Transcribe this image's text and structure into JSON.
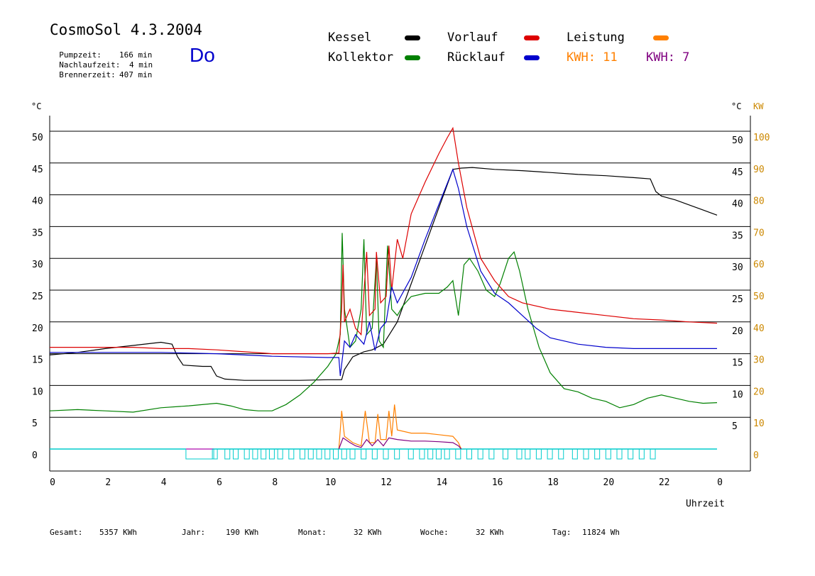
{
  "header": {
    "title": "CosmoSol 4.3.2004",
    "weekday": "Do",
    "stats": [
      {
        "label": "Pumpzeit:",
        "value": "166 min"
      },
      {
        "label": "Nachlaufzeit:",
        "value": "4 min"
      },
      {
        "label": "Brennerzeit:",
        "value": "407 min"
      }
    ]
  },
  "legend": {
    "items": [
      {
        "label": "Kessel",
        "color": "#000000"
      },
      {
        "label": "Kollektor",
        "color": "#008000"
      },
      {
        "label": "Vorlauf",
        "color": "#dd0000"
      },
      {
        "label": "Rücklauf",
        "color": "#0000cc"
      },
      {
        "label": "Leistung",
        "color": "#ff8000"
      }
    ],
    "kwh": [
      {
        "label": "KWH: 11",
        "color": "#ff8000"
      },
      {
        "label": "KWH: 7",
        "color": "#800080"
      }
    ]
  },
  "footer": [
    {
      "label": "Gesamt:",
      "value": "5357 KWh"
    },
    {
      "label": "Jahr:",
      "value": "190 KWh"
    },
    {
      "label": "Monat:",
      "value": "32 KWh"
    },
    {
      "label": "Woche:",
      "value": "32 KWh"
    },
    {
      "label": "Tag:",
      "value": "11824 Wh"
    }
  ],
  "chart_data": {
    "type": "line",
    "xlabel": "Uhrzeit",
    "ylabel_left": "°C",
    "ylabel_right_temp": "°C",
    "ylabel_right_power": "KW",
    "xlim": [
      0,
      24
    ],
    "ylim": [
      0,
      50
    ],
    "y2lim": [
      0,
      100
    ],
    "x_ticks": [
      "0",
      "2",
      "4",
      "6",
      "8",
      "10",
      "12",
      "14",
      "16",
      "18",
      "20",
      "22",
      "0"
    ],
    "y_ticks": [
      "0",
      "5",
      "10",
      "15",
      "20",
      "25",
      "30",
      "35",
      "40",
      "45",
      "50"
    ],
    "y_ticks_right": [
      "5",
      "10",
      "15",
      "20",
      "25",
      "30",
      "35",
      "40",
      "45",
      "50"
    ],
    "y2_ticks": [
      "0",
      "10",
      "20",
      "30",
      "40",
      "50",
      "60",
      "70",
      "80",
      "90",
      "100"
    ],
    "grid": true,
    "series": [
      {
        "name": "Kessel",
        "color": "#000000",
        "points": [
          [
            0,
            14.8
          ],
          [
            1,
            15.2
          ],
          [
            2,
            15.8
          ],
          [
            3,
            16.3
          ],
          [
            4,
            16.8
          ],
          [
            4.4,
            16.5
          ],
          [
            4.6,
            14.5
          ],
          [
            4.8,
            13.2
          ],
          [
            5.5,
            13.0
          ],
          [
            5.8,
            13.0
          ],
          [
            6.0,
            11.5
          ],
          [
            6.3,
            11.0
          ],
          [
            7,
            10.8
          ],
          [
            8,
            10.8
          ],
          [
            9,
            10.8
          ],
          [
            10,
            10.9
          ],
          [
            10.5,
            10.9
          ],
          [
            10.6,
            12.5
          ],
          [
            10.9,
            14.5
          ],
          [
            11.3,
            15.3
          ],
          [
            11.6,
            15.6
          ],
          [
            12,
            16.5
          ],
          [
            12.5,
            20
          ],
          [
            13,
            26
          ],
          [
            13.5,
            32
          ],
          [
            14,
            38
          ],
          [
            14.5,
            44
          ],
          [
            14.8,
            44.2
          ],
          [
            15.2,
            44.3
          ],
          [
            16,
            44.0
          ],
          [
            17,
            43.8
          ],
          [
            18,
            43.5
          ],
          [
            19,
            43.2
          ],
          [
            20,
            43.0
          ],
          [
            21,
            42.7
          ],
          [
            21.6,
            42.5
          ],
          [
            21.8,
            40.5
          ],
          [
            22,
            39.8
          ],
          [
            22.5,
            39.2
          ],
          [
            23,
            38.4
          ],
          [
            23.5,
            37.6
          ],
          [
            24,
            36.8
          ]
        ]
      },
      {
        "name": "Kollektor",
        "color": "#008000",
        "points": [
          [
            0,
            6.0
          ],
          [
            1,
            6.2
          ],
          [
            2,
            6.0
          ],
          [
            3,
            5.8
          ],
          [
            4,
            6.5
          ],
          [
            5,
            6.8
          ],
          [
            6,
            7.2
          ],
          [
            6.5,
            6.8
          ],
          [
            7,
            6.2
          ],
          [
            7.5,
            6.0
          ],
          [
            8,
            6.0
          ],
          [
            8.5,
            7.0
          ],
          [
            9,
            8.5
          ],
          [
            9.5,
            10.5
          ],
          [
            10,
            13.0
          ],
          [
            10.3,
            15.0
          ],
          [
            10.45,
            18.0
          ],
          [
            10.52,
            34.0
          ],
          [
            10.6,
            22.0
          ],
          [
            10.8,
            16.0
          ],
          [
            11.0,
            17.0
          ],
          [
            11.2,
            22.0
          ],
          [
            11.3,
            33.0
          ],
          [
            11.4,
            18.0
          ],
          [
            11.6,
            19.0
          ],
          [
            11.75,
            30.0
          ],
          [
            11.85,
            17.0
          ],
          [
            12.0,
            16.0
          ],
          [
            12.15,
            32.0
          ],
          [
            12.3,
            22.0
          ],
          [
            12.5,
            21.0
          ],
          [
            12.7,
            22.5
          ],
          [
            13,
            24.0
          ],
          [
            13.5,
            24.5
          ],
          [
            14,
            24.5
          ],
          [
            14.3,
            25.5
          ],
          [
            14.5,
            26.5
          ],
          [
            14.7,
            21.0
          ],
          [
            14.9,
            29.0
          ],
          [
            15.1,
            30.0
          ],
          [
            15.4,
            28.0
          ],
          [
            15.7,
            25.0
          ],
          [
            16,
            24.0
          ],
          [
            16.2,
            26.0
          ],
          [
            16.5,
            30.0
          ],
          [
            16.7,
            31.0
          ],
          [
            16.9,
            28.0
          ],
          [
            17.2,
            22.0
          ],
          [
            17.6,
            16.0
          ],
          [
            18,
            12.0
          ],
          [
            18.5,
            9.5
          ],
          [
            19,
            9.0
          ],
          [
            19.5,
            8.0
          ],
          [
            20,
            7.5
          ],
          [
            20.5,
            6.5
          ],
          [
            21,
            7.0
          ],
          [
            21.5,
            8.0
          ],
          [
            22,
            8.5
          ],
          [
            22.5,
            8.0
          ],
          [
            23,
            7.5
          ],
          [
            23.5,
            7.2
          ],
          [
            24,
            7.3
          ]
        ]
      },
      {
        "name": "Vorlauf",
        "color": "#dd0000",
        "points": [
          [
            0,
            16.0
          ],
          [
            1,
            16.0
          ],
          [
            2,
            16.0
          ],
          [
            3,
            16.0
          ],
          [
            4,
            15.8
          ],
          [
            5,
            15.8
          ],
          [
            6,
            15.6
          ],
          [
            7,
            15.3
          ],
          [
            8,
            15.0
          ],
          [
            9,
            15.0
          ],
          [
            10,
            15.0
          ],
          [
            10.4,
            15.1
          ],
          [
            10.5,
            22.0
          ],
          [
            10.55,
            29.0
          ],
          [
            10.6,
            20.0
          ],
          [
            10.8,
            22.0
          ],
          [
            11.0,
            19.0
          ],
          [
            11.2,
            18.0
          ],
          [
            11.4,
            31.0
          ],
          [
            11.5,
            21.0
          ],
          [
            11.7,
            22.0
          ],
          [
            11.75,
            31.0
          ],
          [
            11.9,
            23.0
          ],
          [
            12.1,
            24.0
          ],
          [
            12.2,
            32.0
          ],
          [
            12.3,
            25.0
          ],
          [
            12.5,
            33.0
          ],
          [
            12.7,
            30.0
          ],
          [
            13,
            37.0
          ],
          [
            13.5,
            42.0
          ],
          [
            14,
            46.5
          ],
          [
            14.3,
            49.0
          ],
          [
            14.5,
            50.5
          ],
          [
            14.7,
            45.0
          ],
          [
            15,
            38.0
          ],
          [
            15.5,
            30.0
          ],
          [
            16,
            26.5
          ],
          [
            16.5,
            24.0
          ],
          [
            17,
            23.0
          ],
          [
            18,
            22.0
          ],
          [
            19,
            21.5
          ],
          [
            20,
            21.0
          ],
          [
            21,
            20.5
          ],
          [
            22,
            20.3
          ],
          [
            23,
            20.0
          ],
          [
            24,
            19.8
          ]
        ]
      },
      {
        "name": "Rücklauf",
        "color": "#0000cc",
        "points": [
          [
            0,
            15.2
          ],
          [
            2,
            15.2
          ],
          [
            4,
            15.2
          ],
          [
            6,
            15.0
          ],
          [
            8,
            14.6
          ],
          [
            10,
            14.4
          ],
          [
            10.4,
            14.4
          ],
          [
            10.45,
            11.5
          ],
          [
            10.6,
            17.0
          ],
          [
            10.8,
            16.0
          ],
          [
            11.0,
            18.0
          ],
          [
            11.3,
            16.5
          ],
          [
            11.5,
            20.0
          ],
          [
            11.7,
            15.5
          ],
          [
            11.9,
            19.0
          ],
          [
            12.1,
            20.0
          ],
          [
            12.3,
            25.5
          ],
          [
            12.5,
            23.0
          ],
          [
            13,
            27.0
          ],
          [
            13.5,
            33.0
          ],
          [
            14,
            38.5
          ],
          [
            14.5,
            44.0
          ],
          [
            14.7,
            41.0
          ],
          [
            15,
            35.0
          ],
          [
            15.5,
            28.0
          ],
          [
            16,
            24.5
          ],
          [
            16.5,
            23.0
          ],
          [
            17,
            21.0
          ],
          [
            17.5,
            19.0
          ],
          [
            18,
            17.5
          ],
          [
            19,
            16.5
          ],
          [
            20,
            16.0
          ],
          [
            21,
            15.8
          ],
          [
            22,
            15.8
          ],
          [
            24,
            15.8
          ]
        ]
      }
    ],
    "power_series": [
      {
        "name": "Leistung",
        "color": "#ff8000",
        "points": [
          [
            10.4,
            0
          ],
          [
            10.5,
            12.0
          ],
          [
            10.6,
            4.0
          ],
          [
            10.9,
            2.0
          ],
          [
            11.2,
            1.0
          ],
          [
            11.35,
            12.0
          ],
          [
            11.5,
            2.0
          ],
          [
            11.7,
            2.0
          ],
          [
            11.8,
            11.0
          ],
          [
            11.9,
            3.0
          ],
          [
            12.1,
            3.0
          ],
          [
            12.2,
            12.0
          ],
          [
            12.3,
            4.0
          ],
          [
            12.4,
            14.0
          ],
          [
            12.5,
            6.0
          ],
          [
            13,
            5.0
          ],
          [
            13.5,
            5.0
          ],
          [
            14,
            4.5
          ],
          [
            14.5,
            4.0
          ],
          [
            14.7,
            2.0
          ],
          [
            14.8,
            0
          ]
        ]
      },
      {
        "name": "KWH 7",
        "color": "#800080",
        "points": [
          [
            10.4,
            0
          ],
          [
            10.55,
            3.5
          ],
          [
            10.8,
            2.0
          ],
          [
            11.0,
            1.0
          ],
          [
            11.2,
            0.5
          ],
          [
            11.4,
            3.0
          ],
          [
            11.6,
            1.0
          ],
          [
            11.8,
            3.0
          ],
          [
            12.0,
            1.0
          ],
          [
            12.2,
            3.5
          ],
          [
            12.5,
            3.0
          ],
          [
            13,
            2.5
          ],
          [
            13.5,
            2.5
          ],
          [
            14,
            2.3
          ],
          [
            14.5,
            2.0
          ],
          [
            14.7,
            1.0
          ],
          [
            14.8,
            0
          ]
        ]
      }
    ],
    "status_bar": {
      "color": "#00cccc",
      "line_x": [
        0,
        24
      ],
      "wide_segments": [
        [
          4.9,
          5.9
        ]
      ],
      "pink_top": [
        [
          4.9,
          5.9
        ]
      ],
      "small_box_starts": [
        5.85,
        6.3,
        6.6,
        7.0,
        7.3,
        7.6,
        7.9,
        8.2,
        8.6,
        9.0,
        9.3,
        9.6,
        9.9,
        10.2,
        10.5,
        10.8,
        11.2,
        11.6,
        12.0,
        12.4,
        12.9,
        13.3,
        13.6,
        13.9,
        14.2,
        14.6,
        15.0,
        15.4,
        15.8,
        16.3,
        16.8,
        17.1,
        17.5,
        17.9,
        18.3,
        18.8,
        19.2,
        19.6,
        20.0,
        20.4,
        20.8,
        21.2,
        21.6
      ]
    }
  }
}
